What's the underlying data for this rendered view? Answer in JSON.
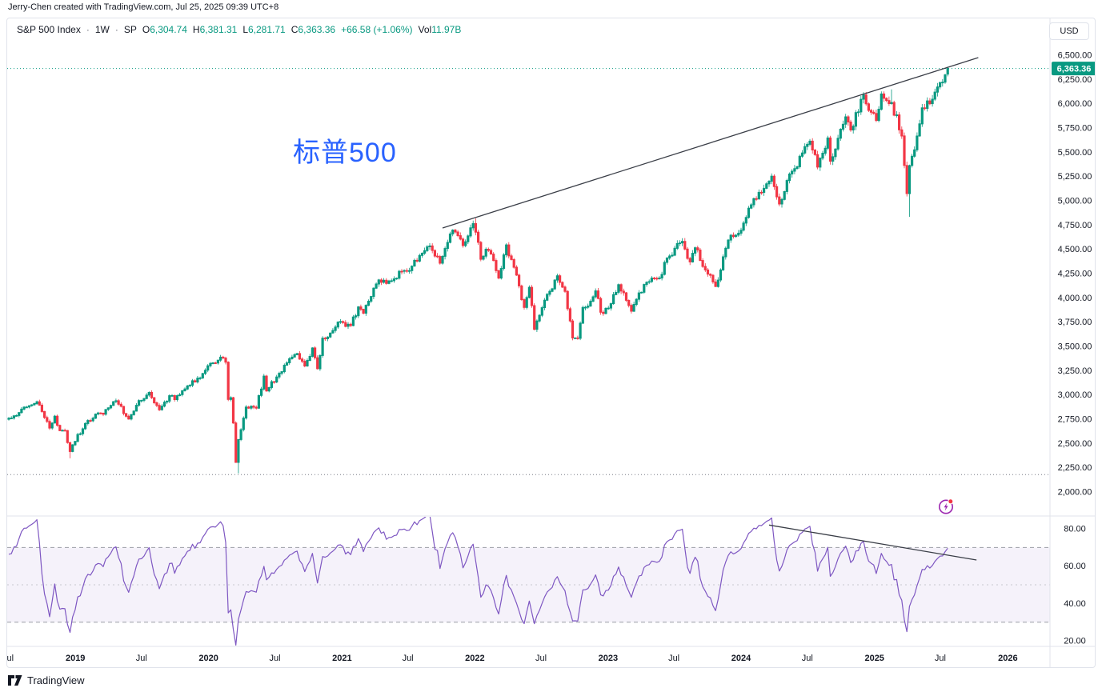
{
  "header": {
    "attribution": "Jerry-Chen created with TradingView.com, Jul 25, 2025 09:39 UTC+8"
  },
  "legend": {
    "symbol": "S&P 500 Index",
    "sep": "·",
    "interval": "1W",
    "exchange": "SP",
    "open_label": "O",
    "open": "6,304.74",
    "high_label": "H",
    "high": "6,381.31",
    "low_label": "L",
    "low": "6,281.71",
    "close_label": "C",
    "close": "6,363.36",
    "change": "+66.58 (+1.06%)",
    "vol_label": "Vol",
    "volume": "11.97B"
  },
  "price_scale": {
    "currency": "USD",
    "last_price_badge": "6,363.36"
  },
  "annotation": {
    "text": "标普500",
    "color": "#2962FF"
  },
  "footer": {
    "brand": "TradingView"
  },
  "colors": {
    "up": "#089981",
    "down": "#F23645",
    "trendline": "#3A3E47",
    "dotted_gray": "#787B86",
    "rsi_line": "#7E57C2",
    "rsi_band_fill": "rgba(126,87,194,0.08)",
    "rsi_level_dash": "#9A9DA6",
    "rsi_mid_dash": "#C6C8CE",
    "axis_text": "#131722",
    "border": "#E0E3EB",
    "badge_bg": "#089981",
    "badge_text": "#FFFFFF",
    "annotation_blue": "#2962FF"
  },
  "chart_data": {
    "type": "candlestick+rsi",
    "title": "S&P 500 Index Weekly (SP)",
    "note": "Weekly candles from Jul 2018 to Jul 25 2025; anchors are approximate weekly closes read from the chart; RSI(14) pane below with 30/50/70 bands and bearish-divergence trendline.",
    "price_axis": {
      "min": 2000,
      "max": 6500,
      "step": 250,
      "tick_format_example": "6,500.00"
    },
    "rsi_axis": {
      "ticks": [
        80,
        60,
        40,
        20
      ],
      "band_levels": [
        70,
        50,
        30
      ]
    },
    "x_axis": {
      "labels": [
        {
          "text": "Jul",
          "week": -0.3
        },
        {
          "text": "2019",
          "week": 26.1,
          "bold": true
        },
        {
          "text": "Jul",
          "week": 52
        },
        {
          "text": "2020",
          "week": 78.3,
          "bold": true
        },
        {
          "text": "Jul",
          "week": 104.3
        },
        {
          "text": "2021",
          "week": 130.6,
          "bold": true
        },
        {
          "text": "Jul",
          "week": 156.4
        },
        {
          "text": "2022",
          "week": 182.7,
          "bold": true
        },
        {
          "text": "Jul",
          "week": 208.6
        },
        {
          "text": "2023",
          "week": 234.9,
          "bold": true
        },
        {
          "text": "Jul",
          "week": 260.7
        },
        {
          "text": "2024",
          "week": 287,
          "bold": true
        },
        {
          "text": "Jul",
          "week": 313
        },
        {
          "text": "2025",
          "week": 339.3,
          "bold": true
        },
        {
          "text": "Jul",
          "week": 365.1
        },
        {
          "text": "2026",
          "week": 391.6,
          "bold": true
        }
      ]
    },
    "anchors": [
      [
        0,
        2760
      ],
      [
        7,
        2875
      ],
      [
        11,
        2930
      ],
      [
        14,
        2767
      ],
      [
        16,
        2659
      ],
      [
        18,
        2781
      ],
      [
        20,
        2632
      ],
      [
        22,
        2633
      ],
      [
        24,
        2417
      ],
      [
        25,
        2486
      ],
      [
        30,
        2706
      ],
      [
        34,
        2803
      ],
      [
        37,
        2801
      ],
      [
        42,
        2940
      ],
      [
        47,
        2752
      ],
      [
        51,
        2942
      ],
      [
        55,
        3026
      ],
      [
        57,
        2919
      ],
      [
        59,
        2847
      ],
      [
        63,
        2992
      ],
      [
        65,
        2952
      ],
      [
        70,
        3093
      ],
      [
        76,
        3221
      ],
      [
        80,
        3330
      ],
      [
        84,
        3380
      ],
      [
        85,
        3338
      ],
      [
        86,
        2954
      ],
      [
        87,
        2972
      ],
      [
        88,
        2711
      ],
      [
        89,
        2305
      ],
      [
        90,
        2541
      ],
      [
        93,
        2875
      ],
      [
        97,
        2864
      ],
      [
        100,
        3194
      ],
      [
        101,
        3041
      ],
      [
        105,
        3185
      ],
      [
        110,
        3373
      ],
      [
        113,
        3427
      ],
      [
        116,
        3298
      ],
      [
        119,
        3484
      ],
      [
        121,
        3270
      ],
      [
        123,
        3585
      ],
      [
        126,
        3638
      ],
      [
        130,
        3756
      ],
      [
        134,
        3714
      ],
      [
        137,
        3907
      ],
      [
        139,
        3842
      ],
      [
        145,
        4185
      ],
      [
        149,
        4174
      ],
      [
        155,
        4281
      ],
      [
        158,
        4327
      ],
      [
        161,
        4437
      ],
      [
        165,
        4535
      ],
      [
        169,
        4357
      ],
      [
        174,
        4698
      ],
      [
        178,
        4538
      ],
      [
        182,
        4766
      ],
      [
        183,
        4677
      ],
      [
        185,
        4398
      ],
      [
        187,
        4501
      ],
      [
        190,
        4385
      ],
      [
        192,
        4204
      ],
      [
        195,
        4546
      ],
      [
        200,
        4123
      ],
      [
        202,
        3901
      ],
      [
        204,
        4109
      ],
      [
        206,
        3675
      ],
      [
        209,
        3899
      ],
      [
        215,
        4228
      ],
      [
        218,
        4067
      ],
      [
        221,
        3586
      ],
      [
        223,
        3583
      ],
      [
        225,
        3901
      ],
      [
        228,
        3965
      ],
      [
        230,
        4072
      ],
      [
        232,
        3852
      ],
      [
        235,
        3895
      ],
      [
        239,
        4136
      ],
      [
        244,
        3862
      ],
      [
        249,
        4138
      ],
      [
        255,
        4205
      ],
      [
        258,
        4410
      ],
      [
        264,
        4582
      ],
      [
        267,
        4370
      ],
      [
        269,
        4516
      ],
      [
        273,
        4288
      ],
      [
        277,
        4117
      ],
      [
        282,
        4595
      ],
      [
        287,
        4697
      ],
      [
        291,
        4959
      ],
      [
        299,
        5254
      ],
      [
        302,
        4967
      ],
      [
        307,
        5305
      ],
      [
        314,
        5615
      ],
      [
        317,
        5347
      ],
      [
        321,
        5648
      ],
      [
        322,
        5408
      ],
      [
        328,
        5865
      ],
      [
        330,
        5729
      ],
      [
        335,
        6090
      ],
      [
        337,
        5931
      ],
      [
        340,
        5827
      ],
      [
        342,
        6101
      ],
      [
        346,
        6013
      ],
      [
        350,
        5668
      ],
      [
        352,
        5074
      ],
      [
        353,
        5363
      ],
      [
        355,
        5525
      ],
      [
        358,
        5958
      ],
      [
        361,
        6000
      ],
      [
        364,
        6173
      ],
      [
        367,
        6297
      ],
      [
        368,
        6363.36
      ]
    ],
    "wick_overrides": [
      {
        "week": 11,
        "high": 2940.91
      },
      {
        "week": 24,
        "low": 2346.58
      },
      {
        "week": 85,
        "high": 3393.52
      },
      {
        "week": 90,
        "low": 2191.86
      },
      {
        "week": 183,
        "high": 4818.62
      },
      {
        "week": 346,
        "high": 6147.43
      },
      {
        "week": 353,
        "low": 4835.04
      }
    ],
    "last_candle": {
      "open": 6304.74,
      "high": 6381.31,
      "low": 6281.71,
      "close": 6363.36
    },
    "rsi": {
      "period": 14,
      "source": "close"
    },
    "drawings": {
      "price_trendline": {
        "from": {
          "week": 170,
          "price": 4720
        },
        "to": {
          "week": 380,
          "price": 6475
        }
      },
      "rsi_trendline": {
        "from": {
          "week": 298,
          "value": 82
        },
        "to": {
          "week": 379.3,
          "value": 63.3
        }
      },
      "current_price_line": 6363.36,
      "support_price_line": 2180
    }
  }
}
